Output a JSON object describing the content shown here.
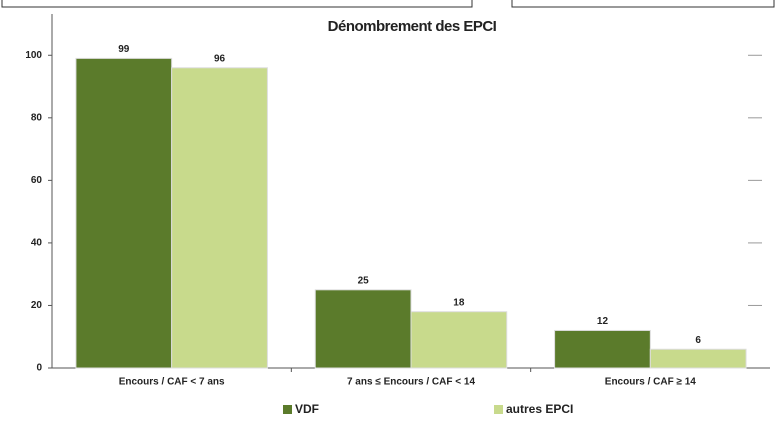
{
  "chart_data": {
    "type": "bar",
    "title": "Dénombrement des EPCI",
    "categories": [
      "Encours / CAF < 7 ans",
      "7 ans ≤ Encours / CAF < 14",
      "Encours / CAF ≥ 14"
    ],
    "series": [
      {
        "name": "VDF",
        "color": "#5b7b2b",
        "values": [
          99,
          25,
          12
        ]
      },
      {
        "name": "autres EPCI",
        "color": "#c8da8c",
        "values": [
          96,
          18,
          6
        ]
      }
    ],
    "ylim": [
      0,
      110
    ],
    "yticks": [
      0,
      20,
      40,
      60,
      80,
      100
    ],
    "grid": false
  }
}
